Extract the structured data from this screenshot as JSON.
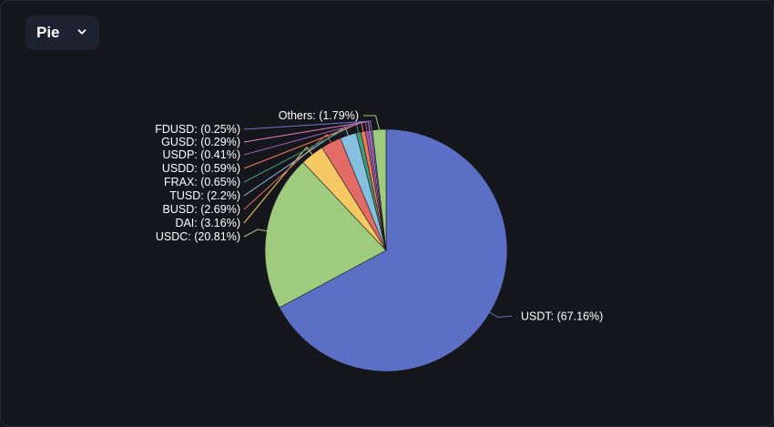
{
  "chart_selector": {
    "selected": "Pie"
  },
  "icons": {
    "dropdown": "chevron-down-icon"
  },
  "chart_data": {
    "type": "pie",
    "title": "",
    "slices": [
      {
        "name": "USDT",
        "value": 67.16,
        "label": "USDT: (67.16%)",
        "color": "#5b70c4"
      },
      {
        "name": "USDC",
        "value": 20.81,
        "label": "USDC: (20.81%)",
        "color": "#9fcb7e"
      },
      {
        "name": "DAI",
        "value": 3.16,
        "label": "DAI: (3.16%)",
        "color": "#f5c864"
      },
      {
        "name": "BUSD",
        "value": 2.69,
        "label": "BUSD: (2.69%)",
        "color": "#e36b66"
      },
      {
        "name": "TUSD",
        "value": 2.2,
        "label": "TUSD: (2.2%)",
        "color": "#87bfde"
      },
      {
        "name": "FRAX",
        "value": 0.65,
        "label": "FRAX: (0.65%)",
        "color": "#3e9a77"
      },
      {
        "name": "USDD",
        "value": 0.59,
        "label": "USDD: (0.59%)",
        "color": "#f07c55"
      },
      {
        "name": "USDP",
        "value": 0.41,
        "label": "USDP: (0.41%)",
        "color": "#9a5fb3"
      },
      {
        "name": "GUSD",
        "value": 0.29,
        "label": "GUSD: (0.29%)",
        "color": "#e680c7"
      },
      {
        "name": "FDUSD",
        "value": 0.25,
        "label": "FDUSD: (0.25%)",
        "color": "#6a7ad0"
      },
      {
        "name": "Others",
        "value": 1.79,
        "label": "Others: (1.79%)",
        "color": "#9fcb7e"
      }
    ],
    "legend": "none"
  }
}
